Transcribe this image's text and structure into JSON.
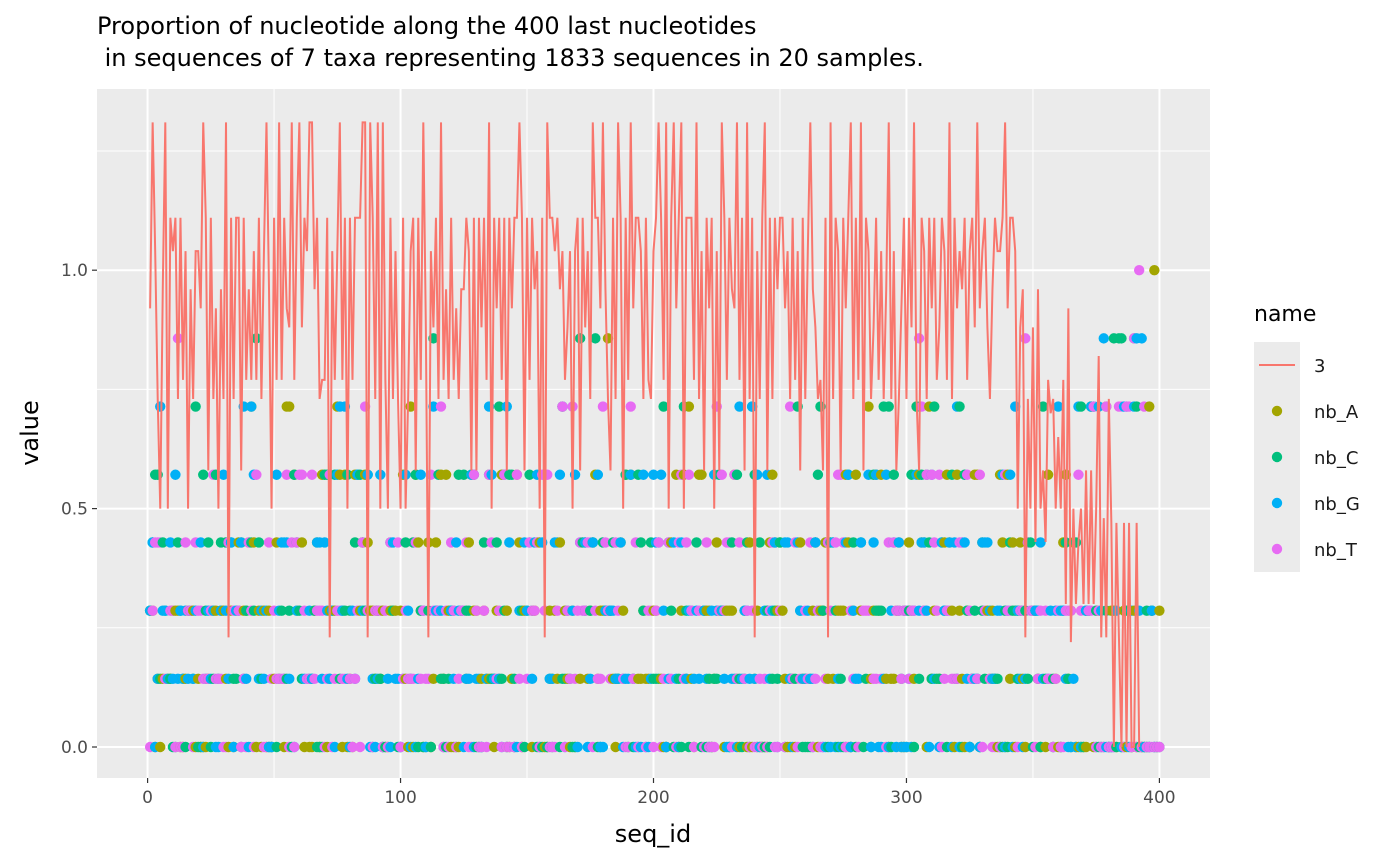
{
  "chart_data": {
    "type": "line+scatter",
    "title_lines": [
      "Proportion of nucleotide along the 400 last nucleotides",
      " in sequences of 7 taxa representing 1833 sequences in 20 samples."
    ],
    "xlabel": "seq_id",
    "ylabel": "value",
    "xlim": [
      -20,
      420
    ],
    "ylim": [
      -0.065,
      1.38
    ],
    "x_ticks": [
      0,
      100,
      200,
      300,
      400
    ],
    "y_ticks": [
      0.0,
      0.5,
      1.0
    ],
    "x_tick_labels": [
      "0",
      "100",
      "200",
      "300",
      "400"
    ],
    "y_tick_labels": [
      "0.0",
      "0.5",
      "1.0"
    ],
    "legend": {
      "title": "name",
      "placement": "right",
      "entries": [
        {
          "label": "3",
          "kind": "line",
          "color": "#F8766D"
        },
        {
          "label": "nb_A",
          "kind": "point",
          "color": "#A3A500"
        },
        {
          "label": "nb_C",
          "kind": "point",
          "color": "#00BF7D"
        },
        {
          "label": "nb_G",
          "kind": "point",
          "color": "#00B0F6"
        },
        {
          "label": "nb_T",
          "kind": "point",
          "color": "#E76BF3"
        }
      ]
    },
    "point_levels": [
      0,
      0.143,
      0.286,
      0.429,
      0.571,
      0.714,
      0.857,
      1.0
    ],
    "series": [
      {
        "name": "3",
        "kind": "line",
        "color": "#F8766D",
        "x_start": 1,
        "values": [
          0.92,
          1.31,
          1.04,
          0.73,
          0.5,
          0.96,
          1.31,
          0.5,
          1.11,
          1.04,
          1.11,
          0.73,
          1.11,
          0.77,
          1.04,
          0.5,
          0.96,
          0.73,
          1.04,
          1.04,
          0.92,
          1.31,
          1.11,
          0.58,
          1.11,
          0.73,
          0.92,
          0.5,
          0.96,
          0.73,
          1.31,
          0.23,
          1.11,
          0.73,
          1.11,
          1.11,
          0.58,
          1.11,
          0.77,
          0.96,
          0.77,
          1.04,
          0.77,
          1.11,
          0.73,
          1.04,
          1.31,
          0.96,
          0.5,
          1.11,
          0.77,
          1.31,
          0.77,
          1.11,
          0.92,
          0.88,
          1.31,
          0.77,
          1.11,
          1.31,
          0.88,
          1.11,
          1.04,
          1.31,
          1.31,
          0.96,
          1.11,
          0.73,
          0.77,
          0.77,
          1.11,
          0.23,
          1.04,
          0.77,
          1.04,
          1.31,
          0.77,
          1.11,
          0.5,
          1.11,
          0.77,
          1.11,
          1.11,
          1.11,
          1.31,
          1.31,
          0.23,
          1.31,
          1.11,
          0.73,
          1.31,
          0.5,
          1.31,
          0.77,
          0.5,
          1.11,
          0.73,
          1.04,
          0.73,
          0.5,
          1.11,
          0.5,
          0.73,
          1.04,
          1.11,
          0.58,
          1.11,
          0.77,
          1.31,
          0.88,
          0.23,
          1.04,
          0.88,
          1.11,
          0.73,
          1.31,
          0.77,
          0.96,
          0.73,
          1.11,
          0.77,
          0.92,
          0.73,
          0.96,
          0.96,
          1.11,
          1.04,
          0.58,
          1.11,
          0.58,
          1.11,
          0.88,
          1.11,
          0.77,
          1.31,
          0.5,
          1.11,
          0.92,
          1.11,
          0.77,
          1.11,
          0.58,
          1.11,
          0.92,
          1.11,
          1.11,
          1.31,
          1.11,
          0.58,
          1.11,
          0.77,
          1.11,
          0.96,
          1.04,
          0.5,
          1.11,
          0.23,
          1.31,
          1.11,
          1.11,
          1.04,
          1.11,
          0.96,
          1.04,
          0.77,
          0.88,
          1.04,
          0.5,
          1.04,
          1.11,
          0.58,
          1.11,
          0.88,
          1.04,
          0.73,
          1.31,
          1.11,
          1.11,
          0.92,
          1.31,
          0.96,
          0.73,
          0.58,
          1.11,
          0.73,
          1.31,
          1.11,
          0.5,
          1.11,
          0.77,
          1.31,
          0.92,
          1.11,
          1.11,
          1.04,
          0.73,
          1.11,
          0.77,
          0.73,
          1.04,
          1.11,
          1.31,
          1.11,
          0.77,
          1.31,
          0.5,
          1.11,
          1.31,
          0.92,
          1.11,
          1.31,
          0.5,
          1.11,
          1.11,
          1.11,
          0.77,
          1.31,
          0.73,
          1.04,
          0.58,
          1.11,
          0.92,
          1.11,
          0.5,
          1.04,
          0.58,
          1.31,
          1.11,
          0.77,
          1.11,
          0.96,
          0.92,
          1.31,
          0.77,
          1.11,
          0.58,
          1.31,
          0.73,
          1.11,
          0.23,
          1.04,
          0.73,
          1.11,
          1.31,
          0.58,
          1.11,
          0.73,
          1.11,
          0.96,
          1.11,
          1.11,
          0.92,
          1.04,
          0.73,
          1.11,
          0.77,
          1.04,
          0.58,
          1.11,
          0.73,
          1.04,
          1.31,
          0.96,
          0.88,
          0.73,
          0.77,
          0.58,
          1.11,
          0.23,
          1.31,
          0.73,
          1.11,
          1.04,
          0.58,
          1.11,
          0.92,
          1.11,
          1.31,
          0.73,
          1.11,
          0.77,
          1.31,
          0.58,
          1.11,
          1.04,
          0.73,
          0.88,
          1.11,
          0.77,
          1.04,
          0.73,
          0.96,
          1.31,
          0.73,
          1.04,
          0.58,
          0.73,
          0.92,
          1.11,
          0.73,
          1.11,
          0.88,
          1.31,
          0.73,
          0.58,
          1.11,
          1.04,
          0.73,
          1.11,
          0.92,
          1.11,
          0.77,
          0.88,
          1.11,
          1.04,
          0.77,
          1.31,
          0.73,
          1.11,
          0.92,
          1.04,
          0.96,
          1.11,
          0.77,
          1.04,
          1.11,
          0.88,
          1.31,
          0.92,
          1.04,
          1.11,
          0.88,
          0.73,
          0.96,
          1.11,
          1.04,
          1.04,
          1.11,
          1.31,
          0.92,
          1.11,
          1.11,
          1.04,
          0.5,
          0.88,
          0.96,
          0.23,
          0.73,
          0.5,
          0.88,
          0.43,
          0.96,
          0.5,
          0.58,
          0.43,
          0.77,
          0.7,
          0.73,
          0.5,
          0.65,
          0.5,
          0.77,
          0.3,
          0.92,
          0.22,
          0.5,
          0.3,
          0.43,
          0.5,
          0.3,
          0.58,
          0.3,
          0.58,
          0.3,
          0.5,
          0.82,
          0.23,
          0.48,
          0.23,
          0.73,
          0.47,
          0.0,
          0.47,
          0.23,
          0.0,
          0.47,
          0.0,
          0.47,
          0.0,
          0.0,
          0.47,
          0.0
        ]
      }
    ]
  }
}
